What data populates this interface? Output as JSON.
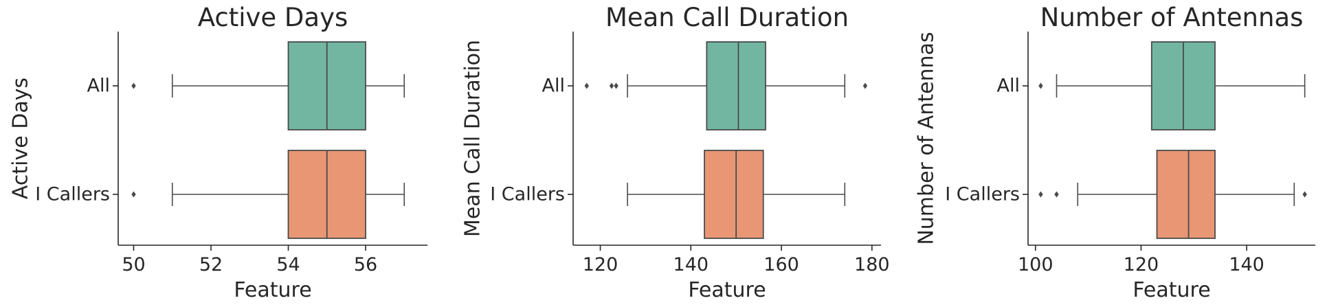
{
  "chart_data": [
    {
      "type": "box",
      "title": "Active Days",
      "xlabel": "Feature",
      "ylabel": "Active Days",
      "xlim": [
        49.6,
        57.6
      ],
      "xticks": [
        50,
        52,
        54,
        56
      ],
      "categories": [
        "All",
        "I Callers"
      ],
      "boxes": [
        {
          "category": "All",
          "color": "#72b6a1",
          "whislo": 51,
          "q1": 54,
          "med": 55,
          "q3": 56,
          "whishi": 57,
          "fliers": [
            50
          ]
        },
        {
          "category": "I Callers",
          "color": "#e99675",
          "whislo": 51,
          "q1": 54,
          "med": 55,
          "q3": 56,
          "whishi": 57,
          "fliers": [
            50
          ]
        }
      ]
    },
    {
      "type": "box",
      "title": "Mean Call Duration",
      "xlabel": "Feature",
      "ylabel": "Mean Call Duration",
      "xlim": [
        114,
        182
      ],
      "xticks": [
        120,
        140,
        160,
        180
      ],
      "categories": [
        "All",
        "I Callers"
      ],
      "boxes": [
        {
          "category": "All",
          "color": "#72b6a1",
          "whislo": 126,
          "q1": 143.5,
          "med": 150.5,
          "q3": 156.5,
          "whishi": 174,
          "fliers": [
            117,
            122.5,
            123.5,
            178.5
          ]
        },
        {
          "category": "I Callers",
          "color": "#e99675",
          "whislo": 126,
          "q1": 143,
          "med": 150,
          "q3": 156,
          "whishi": 174,
          "fliers": []
        }
      ]
    },
    {
      "type": "box",
      "title": "Number of Antennas",
      "xlabel": "Feature",
      "ylabel": "Number of Antennas",
      "xlim": [
        98.6,
        153
      ],
      "xticks": [
        100,
        120,
        140
      ],
      "categories": [
        "All",
        "I Callers"
      ],
      "boxes": [
        {
          "category": "All",
          "color": "#72b6a1",
          "whislo": 104,
          "q1": 122,
          "med": 128,
          "q3": 134,
          "whishi": 151,
          "fliers": [
            101
          ]
        },
        {
          "category": "I Callers",
          "color": "#e99675",
          "whislo": 108,
          "q1": 123,
          "med": 129,
          "q3": 134,
          "whishi": 149,
          "fliers": [
            101,
            104,
            151
          ]
        }
      ]
    }
  ]
}
